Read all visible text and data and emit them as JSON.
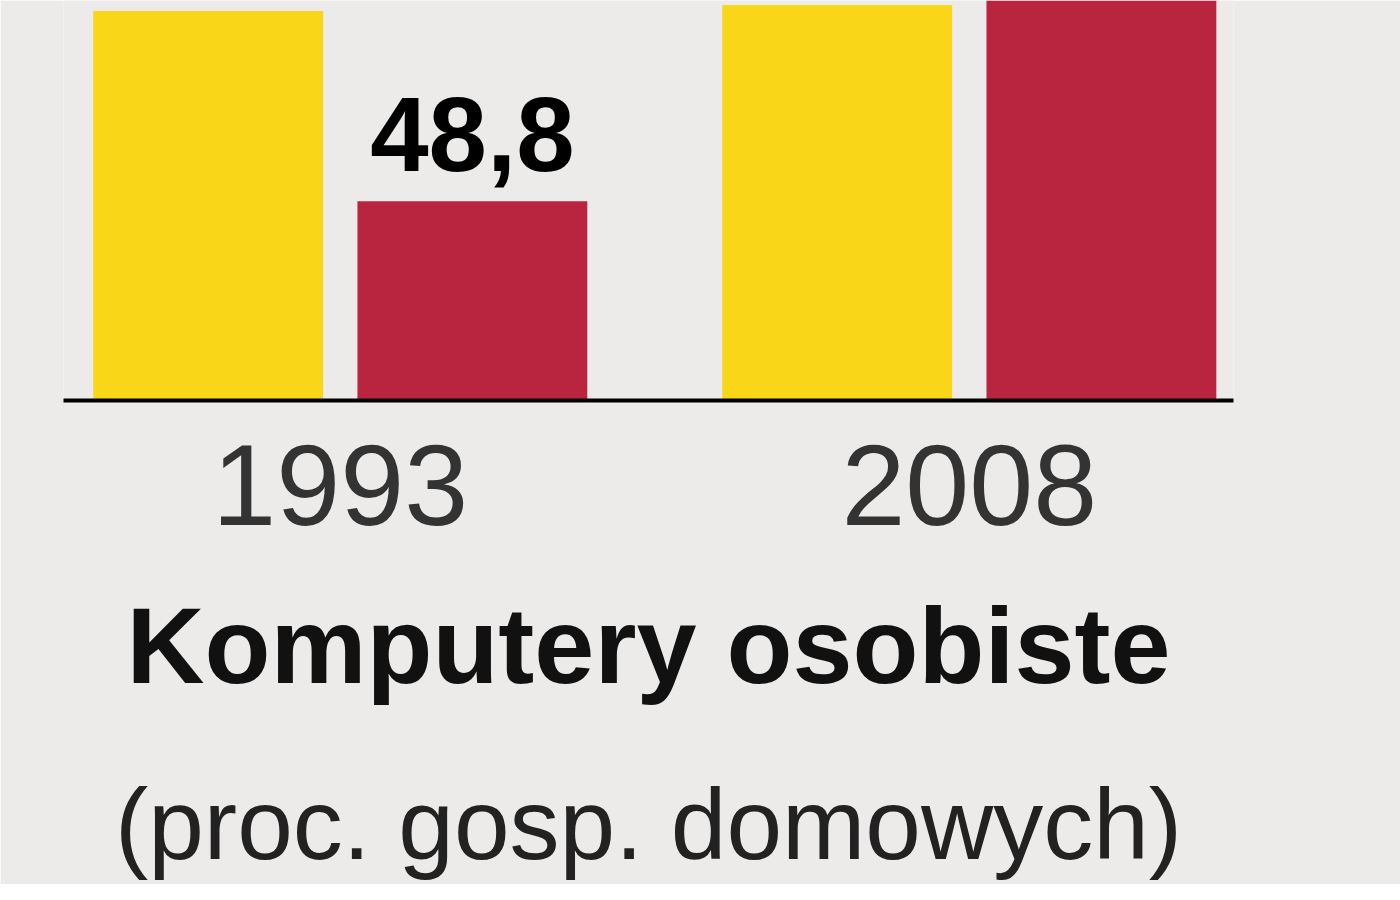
{
  "chart_data": {
    "type": "bar",
    "title": "Komputery osobiste",
    "subtitle": "(proc. gosp. domowych)",
    "categories": [
      "1993",
      "2008"
    ],
    "series": [
      {
        "color": "#f9d617",
        "values": [
          95.4,
          96.9
        ]
      },
      {
        "color": "#b9243f",
        "values": [
          48.8,
          98
        ],
        "value_labels": [
          "48,8",
          null
        ]
      }
    ],
    "ylim": [
      0,
      98
    ],
    "tick_labels": "x"
  }
}
